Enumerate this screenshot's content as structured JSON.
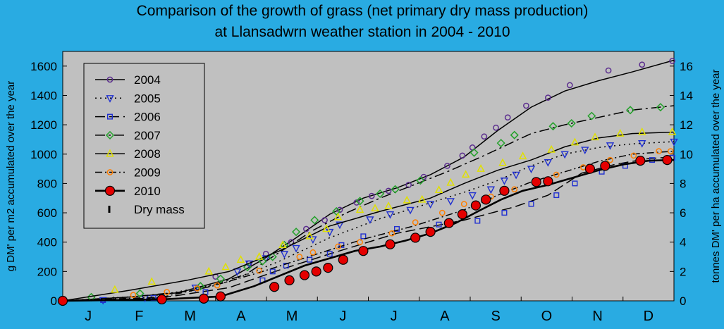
{
  "chart_data": {
    "type": "line",
    "title_line1": "Comparison of the growth of grass (net primary dry mass production)",
    "title_line2": "at Llansadwrn weather station in 2004 - 2010",
    "ylabel_left": "g DM' per m2 accumulated over the year",
    "ylabel_right": "tonnes DM' per ha accumulated over the year",
    "ylim": [
      0,
      1700
    ],
    "ylim_right": [
      0,
      17
    ],
    "yticks_left": [
      "0",
      "200",
      "400",
      "600",
      "800",
      "1000",
      "1200",
      "1400",
      "1600"
    ],
    "yticks_right": [
      "0",
      "2",
      "4",
      "6",
      "8",
      "10",
      "12",
      "14",
      "16"
    ],
    "months": [
      "J",
      "F",
      "M",
      "A",
      "M",
      "J",
      "J",
      "A",
      "S",
      "O",
      "N",
      "D"
    ],
    "grid": false,
    "legend_position": "top-left",
    "legend_extra_label": "Dry mass",
    "background_color": "#29abe2",
    "plot_color": "#c0c0c0",
    "series": [
      {
        "name": "2004",
        "color": "#5b2d8e",
        "marker": "circle",
        "curve": [
          [
            1,
            0
          ],
          [
            40,
            25
          ],
          [
            70,
            55
          ],
          [
            100,
            150
          ],
          [
            120,
            280
          ],
          [
            140,
            430
          ],
          [
            160,
            590
          ],
          [
            180,
            700
          ],
          [
            200,
            770
          ],
          [
            220,
            860
          ],
          [
            240,
            980
          ],
          [
            260,
            1160
          ],
          [
            280,
            1320
          ],
          [
            300,
            1430
          ],
          [
            320,
            1500
          ],
          [
            340,
            1560
          ],
          [
            365,
            1640
          ]
        ],
        "points": [
          [
            1,
            0
          ],
          [
            92,
            165
          ],
          [
            112,
            255
          ],
          [
            122,
            320
          ],
          [
            137,
            400
          ],
          [
            146,
            490
          ],
          [
            157,
            550
          ],
          [
            166,
            620
          ],
          [
            176,
            670
          ],
          [
            185,
            715
          ],
          [
            195,
            750
          ],
          [
            207,
            790
          ],
          [
            216,
            845
          ],
          [
            230,
            920
          ],
          [
            239,
            990
          ],
          [
            245,
            1045
          ],
          [
            252,
            1120
          ],
          [
            259,
            1180
          ],
          [
            266,
            1250
          ],
          [
            277,
            1330
          ],
          [
            290,
            1385
          ],
          [
            303,
            1470
          ],
          [
            326,
            1570
          ],
          [
            346,
            1610
          ],
          [
            364,
            1635
          ]
        ]
      },
      {
        "name": "2005",
        "color": "#2030d0",
        "marker": "triangle-down",
        "curve": [
          [
            1,
            0
          ],
          [
            60,
            40
          ],
          [
            100,
            130
          ],
          [
            130,
            270
          ],
          [
            160,
            430
          ],
          [
            190,
            560
          ],
          [
            215,
            650
          ],
          [
            240,
            740
          ],
          [
            260,
            820
          ],
          [
            280,
            920
          ],
          [
            300,
            1000
          ],
          [
            320,
            1045
          ],
          [
            340,
            1070
          ],
          [
            365,
            1085
          ]
        ],
        "points": [
          [
            1,
            0
          ],
          [
            25,
            5
          ],
          [
            50,
            20
          ],
          [
            80,
            90
          ],
          [
            105,
            200
          ],
          [
            112,
            255
          ],
          [
            122,
            290
          ],
          [
            133,
            320
          ],
          [
            140,
            360
          ],
          [
            150,
            420
          ],
          [
            160,
            470
          ],
          [
            166,
            520
          ],
          [
            184,
            555
          ],
          [
            196,
            590
          ],
          [
            208,
            620
          ],
          [
            220,
            660
          ],
          [
            232,
            680
          ],
          [
            245,
            720
          ],
          [
            256,
            760
          ],
          [
            264,
            820
          ],
          [
            271,
            860
          ],
          [
            280,
            900
          ],
          [
            290,
            945
          ],
          [
            300,
            1000
          ],
          [
            312,
            1030
          ],
          [
            327,
            1060
          ],
          [
            346,
            1075
          ],
          [
            365,
            1085
          ]
        ]
      },
      {
        "name": "2006",
        "color": "#2030d0",
        "marker": "square",
        "curve": [
          [
            1,
            0
          ],
          [
            60,
            20
          ],
          [
            100,
            90
          ],
          [
            130,
            210
          ],
          [
            160,
            320
          ],
          [
            200,
            460
          ],
          [
            240,
            550
          ],
          [
            270,
            640
          ],
          [
            290,
            720
          ],
          [
            310,
            870
          ],
          [
            330,
            930
          ],
          [
            350,
            970
          ],
          [
            365,
            980
          ]
        ],
        "points": [
          [
            1,
            0
          ],
          [
            25,
            5
          ],
          [
            55,
            20
          ],
          [
            86,
            60
          ],
          [
            120,
            140
          ],
          [
            126,
            200
          ],
          [
            134,
            240
          ],
          [
            148,
            280
          ],
          [
            160,
            320
          ],
          [
            167,
            380
          ],
          [
            180,
            440
          ],
          [
            200,
            490
          ],
          [
            225,
            520
          ],
          [
            248,
            545
          ],
          [
            264,
            600
          ],
          [
            280,
            660
          ],
          [
            295,
            720
          ],
          [
            306,
            800
          ],
          [
            322,
            880
          ],
          [
            336,
            920
          ],
          [
            352,
            960
          ],
          [
            364,
            975
          ]
        ]
      },
      {
        "name": "2007",
        "color": "#23a12a",
        "marker": "diamond",
        "curve": [
          [
            1,
            0
          ],
          [
            40,
            25
          ],
          [
            80,
            70
          ],
          [
            110,
            180
          ],
          [
            130,
            330
          ],
          [
            150,
            480
          ],
          [
            170,
            600
          ],
          [
            190,
            700
          ],
          [
            210,
            790
          ],
          [
            230,
            880
          ],
          [
            250,
            980
          ],
          [
            265,
            1060
          ],
          [
            280,
            1140
          ],
          [
            300,
            1200
          ],
          [
            320,
            1250
          ],
          [
            340,
            1300
          ],
          [
            365,
            1330
          ]
        ],
        "points": [
          [
            1,
            0
          ],
          [
            18,
            25
          ],
          [
            47,
            50
          ],
          [
            83,
            100
          ],
          [
            95,
            150
          ],
          [
            111,
            230
          ],
          [
            120,
            270
          ],
          [
            126,
            300
          ],
          [
            133,
            380
          ],
          [
            140,
            470
          ],
          [
            151,
            550
          ],
          [
            164,
            610
          ],
          [
            178,
            680
          ],
          [
            190,
            730
          ],
          [
            199,
            760
          ],
          [
            214,
            820
          ],
          [
            246,
            1010
          ],
          [
            262,
            1075
          ],
          [
            270,
            1130
          ],
          [
            293,
            1190
          ],
          [
            304,
            1210
          ],
          [
            316,
            1260
          ],
          [
            339,
            1300
          ],
          [
            357,
            1320
          ]
        ]
      },
      {
        "name": "2008",
        "color": "#e0e000",
        "marker": "triangle-up",
        "curve": [
          [
            1,
            0
          ],
          [
            40,
            70
          ],
          [
            75,
            140
          ],
          [
            100,
            200
          ],
          [
            130,
            340
          ],
          [
            160,
            510
          ],
          [
            190,
            610
          ],
          [
            220,
            700
          ],
          [
            240,
            800
          ],
          [
            260,
            890
          ],
          [
            280,
            960
          ],
          [
            300,
            1050
          ],
          [
            320,
            1110
          ],
          [
            340,
            1140
          ],
          [
            365,
            1150
          ]
        ],
        "points": [
          [
            1,
            0
          ],
          [
            32,
            75
          ],
          [
            54,
            130
          ],
          [
            88,
            200
          ],
          [
            98,
            230
          ],
          [
            107,
            280
          ],
          [
            118,
            300
          ],
          [
            132,
            380
          ],
          [
            148,
            440
          ],
          [
            158,
            490
          ],
          [
            165,
            570
          ],
          [
            178,
            620
          ],
          [
            187,
            630
          ],
          [
            195,
            645
          ],
          [
            206,
            685
          ],
          [
            215,
            690
          ],
          [
            225,
            755
          ],
          [
            232,
            805
          ],
          [
            241,
            860
          ],
          [
            250,
            900
          ],
          [
            263,
            940
          ],
          [
            275,
            985
          ],
          [
            292,
            1030
          ],
          [
            306,
            1080
          ],
          [
            318,
            1115
          ],
          [
            333,
            1140
          ],
          [
            346,
            1150
          ],
          [
            364,
            1150
          ]
        ]
      },
      {
        "name": "2009",
        "color": "#ff7f00",
        "marker": "circle",
        "curve": [
          [
            1,
            0
          ],
          [
            60,
            25
          ],
          [
            90,
            100
          ],
          [
            120,
            200
          ],
          [
            150,
            310
          ],
          [
            180,
            420
          ],
          [
            210,
            510
          ],
          [
            240,
            620
          ],
          [
            260,
            720
          ],
          [
            280,
            810
          ],
          [
            300,
            880
          ],
          [
            320,
            950
          ],
          [
            340,
            1000
          ],
          [
            365,
            1020
          ]
        ],
        "points": [
          [
            1,
            0
          ],
          [
            43,
            40
          ],
          [
            63,
            60
          ],
          [
            81,
            85
          ],
          [
            93,
            105
          ],
          [
            118,
            205
          ],
          [
            142,
            300
          ],
          [
            150,
            330
          ],
          [
            165,
            370
          ],
          [
            178,
            400
          ],
          [
            197,
            460
          ],
          [
            211,
            535
          ],
          [
            227,
            600
          ],
          [
            240,
            660
          ],
          [
            256,
            710
          ],
          [
            270,
            760
          ],
          [
            283,
            800
          ],
          [
            295,
            860
          ],
          [
            311,
            910
          ],
          [
            327,
            960
          ],
          [
            341,
            990
          ],
          [
            356,
            1020
          ],
          [
            363,
            1020
          ]
        ]
      },
      {
        "name": "2010",
        "color": "#c00000",
        "marker": "big-circle",
        "curve": [
          [
            1,
            0
          ],
          [
            60,
            10
          ],
          [
            95,
            30
          ],
          [
            115,
            100
          ],
          [
            130,
            170
          ],
          [
            145,
            240
          ],
          [
            160,
            290
          ],
          [
            175,
            340
          ],
          [
            190,
            370
          ],
          [
            205,
            410
          ],
          [
            220,
            460
          ],
          [
            235,
            530
          ],
          [
            250,
            620
          ],
          [
            262,
            690
          ],
          [
            275,
            750
          ],
          [
            290,
            790
          ],
          [
            305,
            840
          ],
          [
            320,
            890
          ],
          [
            335,
            930
          ],
          [
            350,
            955
          ],
          [
            365,
            960
          ]
        ],
        "points": [
          [
            1,
            0
          ],
          [
            60,
            10
          ],
          [
            85,
            15
          ],
          [
            95,
            30
          ],
          [
            127,
            95
          ],
          [
            136,
            140
          ],
          [
            145,
            175
          ],
          [
            152,
            200
          ],
          [
            159,
            225
          ],
          [
            168,
            280
          ],
          [
            180,
            340
          ],
          [
            196,
            385
          ],
          [
            211,
            430
          ],
          [
            220,
            470
          ],
          [
            231,
            530
          ],
          [
            239,
            590
          ],
          [
            247,
            650
          ],
          [
            253,
            690
          ],
          [
            264,
            750
          ],
          [
            283,
            810
          ],
          [
            290,
            815
          ],
          [
            315,
            900
          ],
          [
            324,
            920
          ],
          [
            345,
            955
          ],
          [
            361,
            960
          ]
        ]
      }
    ]
  }
}
